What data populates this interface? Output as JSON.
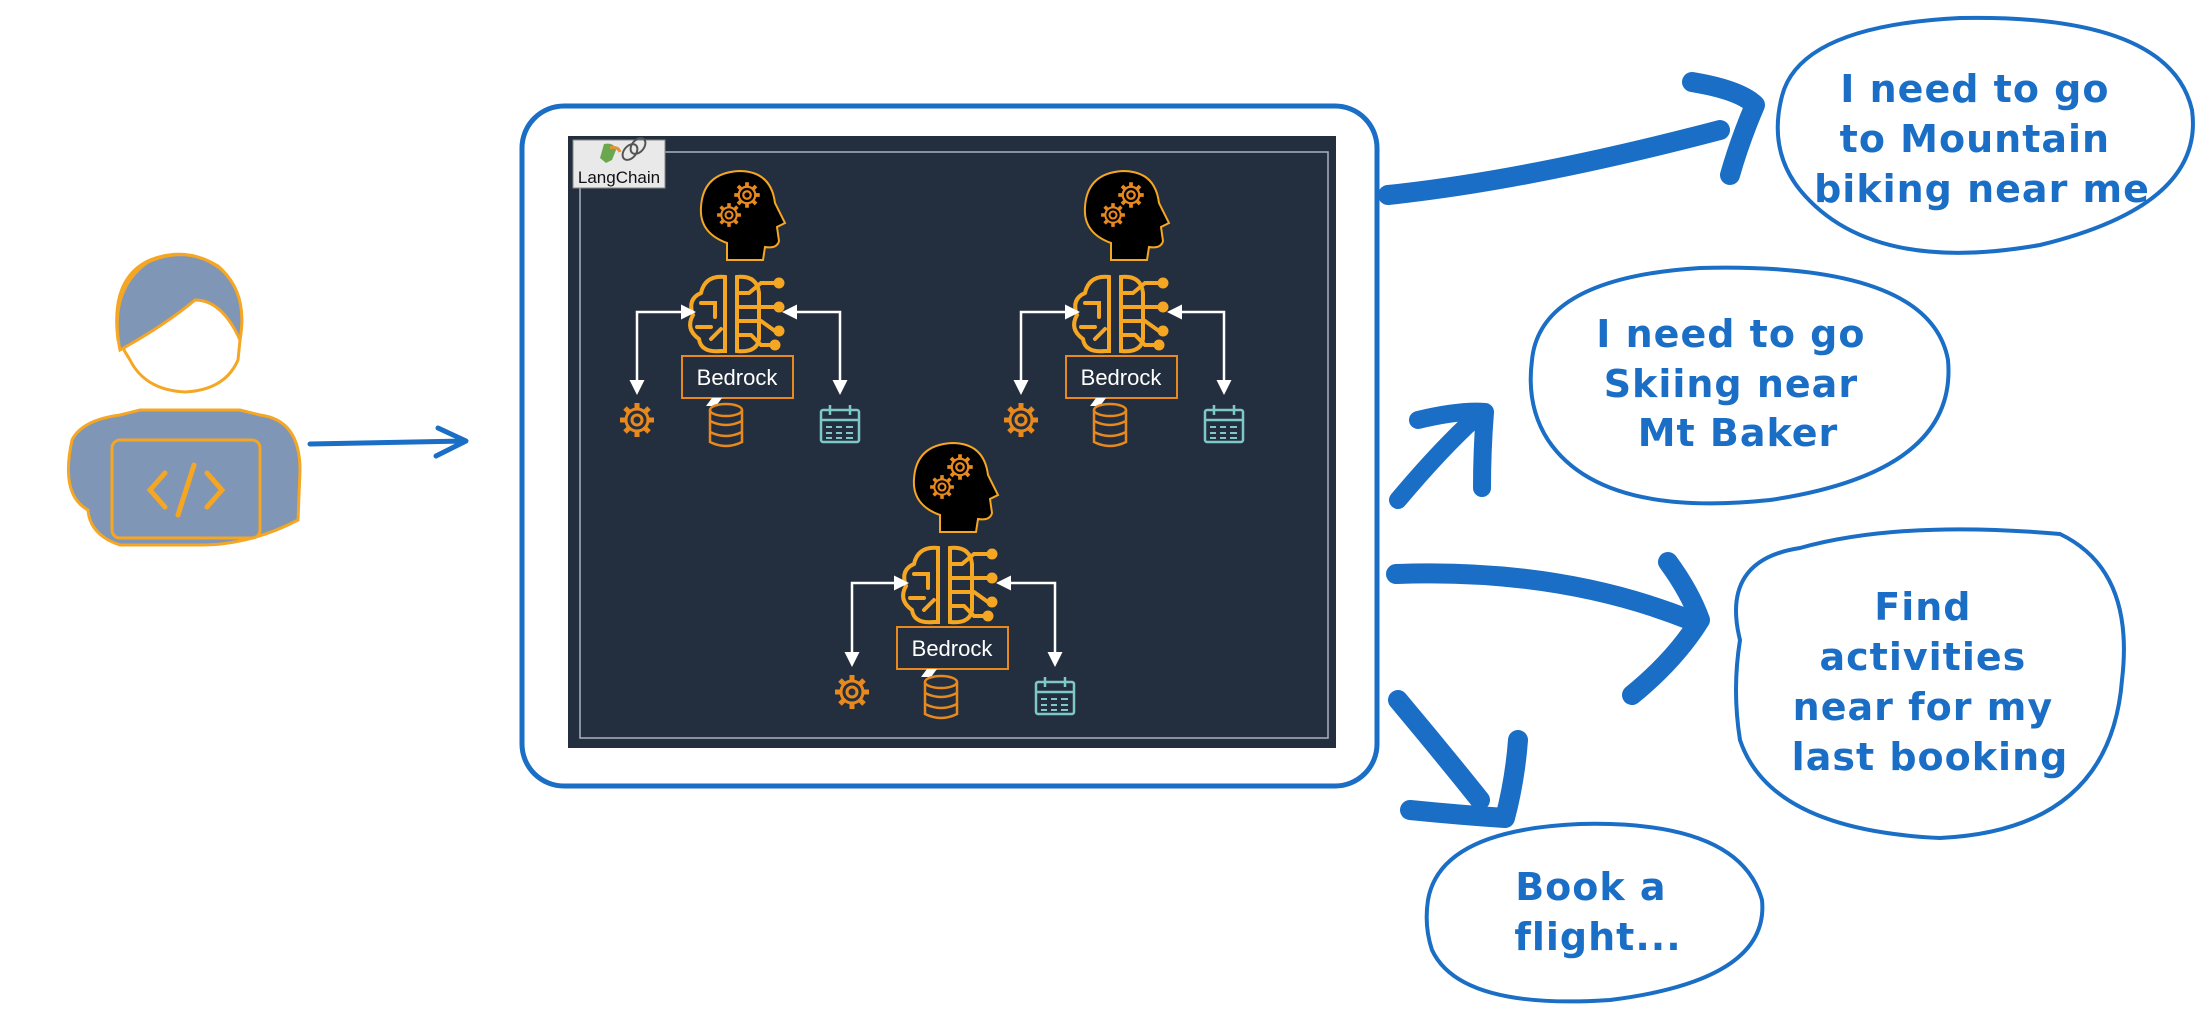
{
  "langchain": {
    "label": "LangChain"
  },
  "agents": [
    {
      "label": "Bedrock"
    },
    {
      "label": "Bedrock"
    },
    {
      "label": "Bedrock"
    }
  ],
  "prompts": [
    {
      "lines": [
        "I need to go",
        "to Mountain",
        "biking near me"
      ]
    },
    {
      "lines": [
        "I need to go",
        "Skiing near",
        "Mt Baker"
      ]
    },
    {
      "lines": [
        "Find",
        "activities",
        "near for my",
        "last booking"
      ]
    },
    {
      "lines": [
        "Book a",
        "flight..."
      ]
    }
  ],
  "colors": {
    "sketch_blue": "#1a6ec5",
    "panel_bg": "#232f3e",
    "aws_orange": "#f5a623",
    "user_body": "#7f96b6",
    "user_outline": "#f5a623",
    "teal": "#5fb3b3"
  }
}
